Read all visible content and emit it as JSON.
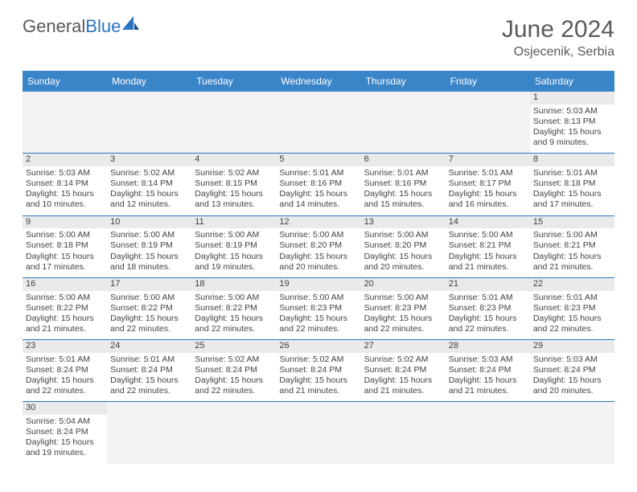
{
  "brand": {
    "part1": "General",
    "part2": "Blue"
  },
  "title": "June 2024",
  "location": "Osjecenik, Serbia",
  "colors": {
    "header_bg": "#3a84c8",
    "header_text": "#ffffff",
    "cell_border": "#2b75c0",
    "daynum_bg": "#eaeaea",
    "empty_bg": "#f3f3f3",
    "text": "#424242",
    "title_text": "#5a5a5a",
    "logo_gray": "#585858",
    "logo_blue": "#2b75c0"
  },
  "typography": {
    "title_fontsize": 30,
    "location_fontsize": 16,
    "header_fontsize": 12,
    "cell_fontsize": 10.5,
    "logo_fontsize": 22
  },
  "columns": [
    "Sunday",
    "Monday",
    "Tuesday",
    "Wednesday",
    "Thursday",
    "Friday",
    "Saturday"
  ],
  "weeks": [
    [
      null,
      null,
      null,
      null,
      null,
      null,
      {
        "n": "1",
        "sr": "Sunrise: 5:03 AM",
        "ss": "Sunset: 8:13 PM",
        "d1": "Daylight: 15 hours",
        "d2": "and 9 minutes."
      }
    ],
    [
      {
        "n": "2",
        "sr": "Sunrise: 5:03 AM",
        "ss": "Sunset: 8:14 PM",
        "d1": "Daylight: 15 hours",
        "d2": "and 10 minutes."
      },
      {
        "n": "3",
        "sr": "Sunrise: 5:02 AM",
        "ss": "Sunset: 8:14 PM",
        "d1": "Daylight: 15 hours",
        "d2": "and 12 minutes."
      },
      {
        "n": "4",
        "sr": "Sunrise: 5:02 AM",
        "ss": "Sunset: 8:15 PM",
        "d1": "Daylight: 15 hours",
        "d2": "and 13 minutes."
      },
      {
        "n": "5",
        "sr": "Sunrise: 5:01 AM",
        "ss": "Sunset: 8:16 PM",
        "d1": "Daylight: 15 hours",
        "d2": "and 14 minutes."
      },
      {
        "n": "6",
        "sr": "Sunrise: 5:01 AM",
        "ss": "Sunset: 8:16 PM",
        "d1": "Daylight: 15 hours",
        "d2": "and 15 minutes."
      },
      {
        "n": "7",
        "sr": "Sunrise: 5:01 AM",
        "ss": "Sunset: 8:17 PM",
        "d1": "Daylight: 15 hours",
        "d2": "and 16 minutes."
      },
      {
        "n": "8",
        "sr": "Sunrise: 5:01 AM",
        "ss": "Sunset: 8:18 PM",
        "d1": "Daylight: 15 hours",
        "d2": "and 17 minutes."
      }
    ],
    [
      {
        "n": "9",
        "sr": "Sunrise: 5:00 AM",
        "ss": "Sunset: 8:18 PM",
        "d1": "Daylight: 15 hours",
        "d2": "and 17 minutes."
      },
      {
        "n": "10",
        "sr": "Sunrise: 5:00 AM",
        "ss": "Sunset: 8:19 PM",
        "d1": "Daylight: 15 hours",
        "d2": "and 18 minutes."
      },
      {
        "n": "11",
        "sr": "Sunrise: 5:00 AM",
        "ss": "Sunset: 8:19 PM",
        "d1": "Daylight: 15 hours",
        "d2": "and 19 minutes."
      },
      {
        "n": "12",
        "sr": "Sunrise: 5:00 AM",
        "ss": "Sunset: 8:20 PM",
        "d1": "Daylight: 15 hours",
        "d2": "and 20 minutes."
      },
      {
        "n": "13",
        "sr": "Sunrise: 5:00 AM",
        "ss": "Sunset: 8:20 PM",
        "d1": "Daylight: 15 hours",
        "d2": "and 20 minutes."
      },
      {
        "n": "14",
        "sr": "Sunrise: 5:00 AM",
        "ss": "Sunset: 8:21 PM",
        "d1": "Daylight: 15 hours",
        "d2": "and 21 minutes."
      },
      {
        "n": "15",
        "sr": "Sunrise: 5:00 AM",
        "ss": "Sunset: 8:21 PM",
        "d1": "Daylight: 15 hours",
        "d2": "and 21 minutes."
      }
    ],
    [
      {
        "n": "16",
        "sr": "Sunrise: 5:00 AM",
        "ss": "Sunset: 8:22 PM",
        "d1": "Daylight: 15 hours",
        "d2": "and 21 minutes."
      },
      {
        "n": "17",
        "sr": "Sunrise: 5:00 AM",
        "ss": "Sunset: 8:22 PM",
        "d1": "Daylight: 15 hours",
        "d2": "and 22 minutes."
      },
      {
        "n": "18",
        "sr": "Sunrise: 5:00 AM",
        "ss": "Sunset: 8:22 PM",
        "d1": "Daylight: 15 hours",
        "d2": "and 22 minutes."
      },
      {
        "n": "19",
        "sr": "Sunrise: 5:00 AM",
        "ss": "Sunset: 8:23 PM",
        "d1": "Daylight: 15 hours",
        "d2": "and 22 minutes."
      },
      {
        "n": "20",
        "sr": "Sunrise: 5:00 AM",
        "ss": "Sunset: 8:23 PM",
        "d1": "Daylight: 15 hours",
        "d2": "and 22 minutes."
      },
      {
        "n": "21",
        "sr": "Sunrise: 5:01 AM",
        "ss": "Sunset: 8:23 PM",
        "d1": "Daylight: 15 hours",
        "d2": "and 22 minutes."
      },
      {
        "n": "22",
        "sr": "Sunrise: 5:01 AM",
        "ss": "Sunset: 8:23 PM",
        "d1": "Daylight: 15 hours",
        "d2": "and 22 minutes."
      }
    ],
    [
      {
        "n": "23",
        "sr": "Sunrise: 5:01 AM",
        "ss": "Sunset: 8:24 PM",
        "d1": "Daylight: 15 hours",
        "d2": "and 22 minutes."
      },
      {
        "n": "24",
        "sr": "Sunrise: 5:01 AM",
        "ss": "Sunset: 8:24 PM",
        "d1": "Daylight: 15 hours",
        "d2": "and 22 minutes."
      },
      {
        "n": "25",
        "sr": "Sunrise: 5:02 AM",
        "ss": "Sunset: 8:24 PM",
        "d1": "Daylight: 15 hours",
        "d2": "and 22 minutes."
      },
      {
        "n": "26",
        "sr": "Sunrise: 5:02 AM",
        "ss": "Sunset: 8:24 PM",
        "d1": "Daylight: 15 hours",
        "d2": "and 21 minutes."
      },
      {
        "n": "27",
        "sr": "Sunrise: 5:02 AM",
        "ss": "Sunset: 8:24 PM",
        "d1": "Daylight: 15 hours",
        "d2": "and 21 minutes."
      },
      {
        "n": "28",
        "sr": "Sunrise: 5:03 AM",
        "ss": "Sunset: 8:24 PM",
        "d1": "Daylight: 15 hours",
        "d2": "and 21 minutes."
      },
      {
        "n": "29",
        "sr": "Sunrise: 5:03 AM",
        "ss": "Sunset: 8:24 PM",
        "d1": "Daylight: 15 hours",
        "d2": "and 20 minutes."
      }
    ],
    [
      {
        "n": "30",
        "sr": "Sunrise: 5:04 AM",
        "ss": "Sunset: 8:24 PM",
        "d1": "Daylight: 15 hours",
        "d2": "and 19 minutes."
      },
      null,
      null,
      null,
      null,
      null,
      null
    ]
  ]
}
